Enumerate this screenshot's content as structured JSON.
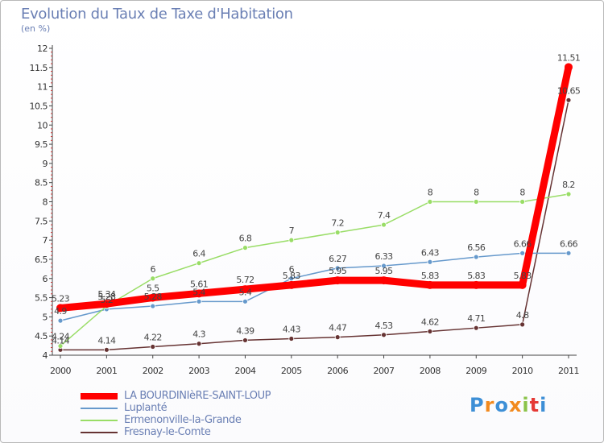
{
  "title": "Evolution du Taux de Taxe d'Habitation",
  "subtitle": "(en %)",
  "logo": {
    "text": "Proxiti",
    "colors": [
      "#3d8fd6",
      "#f28a1e",
      "#3d8fd6",
      "#f28a1e",
      "#8bc34a",
      "#e53935",
      "#3d8fd6"
    ]
  },
  "chart_data": {
    "type": "line",
    "title": "Evolution du Taux de Taxe d'Habitation",
    "ylabel": "(en %)",
    "xlabel": "",
    "x": [
      "2000",
      "2001",
      "2002",
      "2003",
      "2004",
      "2005",
      "2006",
      "2007",
      "2008",
      "2009",
      "2010",
      "2011"
    ],
    "ylim": [
      4,
      12
    ],
    "yticks": [
      "4",
      "4.5",
      "5",
      "5.5",
      "6",
      "6.5",
      "7",
      "7.5",
      "8",
      "8.5",
      "9",
      "9.5",
      "10",
      "10.5",
      "11",
      "11.5",
      "12"
    ],
    "legend_position": "bottom-left",
    "series": [
      {
        "name": "LA BOURDINIèRE-SAINT-LOUP",
        "color": "#ff0000",
        "values": [
          5.23,
          5.34,
          5.5,
          5.61,
          5.72,
          5.83,
          5.95,
          5.95,
          5.83,
          5.83,
          5.83,
          11.51
        ],
        "labels": [
          "5.23",
          "5.34",
          "5.5",
          "5.61",
          "5.72",
          "5.83",
          "5.95",
          "5.95",
          "5.83",
          "5.83",
          "5.83",
          "11.51"
        ]
      },
      {
        "name": "Luplanté",
        "color": "#6699cc",
        "values": [
          4.9,
          5.2,
          5.28,
          5.4,
          5.4,
          6,
          6.27,
          6.33,
          6.43,
          6.56,
          6.66,
          6.66
        ],
        "labels": [
          "4.9",
          "5.2",
          "5.28",
          "5.4",
          "5.4",
          "6",
          "6.27",
          "6.33",
          "6.43",
          "6.56",
          "6.66",
          "6.66"
        ]
      },
      {
        "name": "Ermenonville-la-Grande",
        "color": "#99dd66",
        "values": [
          4.24,
          5.28,
          6,
          6.4,
          6.8,
          7,
          7.2,
          7.4,
          8,
          8,
          8,
          8.2
        ],
        "labels": [
          "4.24",
          "5.28",
          "6",
          "6.4",
          "6.8",
          "7",
          "7.2",
          "7.4",
          "8",
          "8",
          "8",
          "8.2"
        ]
      },
      {
        "name": "Fresnay-le-Comte",
        "color": "#663333",
        "values": [
          4.14,
          4.14,
          4.22,
          4.3,
          4.39,
          4.43,
          4.47,
          4.53,
          4.62,
          4.71,
          4.8,
          10.65
        ],
        "labels": [
          "4.14",
          "4.14",
          "4.22",
          "4.3",
          "4.39",
          "4.43",
          "4.47",
          "4.53",
          "4.62",
          "4.71",
          "4.8",
          "10.65"
        ]
      }
    ]
  }
}
